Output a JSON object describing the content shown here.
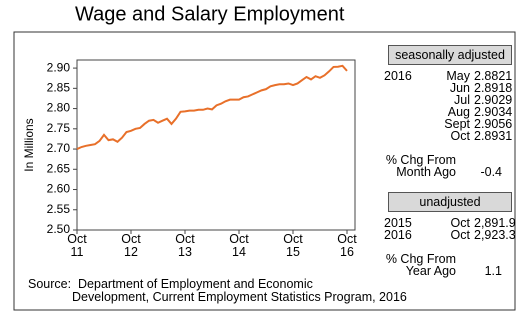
{
  "chart_data": {
    "type": "line",
    "title": "Wage and Salary Employment",
    "y_label": "In Millions",
    "color": "#e8702a",
    "categories": [
      "Oct\n11",
      null,
      null,
      null,
      null,
      null,
      null,
      null,
      null,
      null,
      null,
      null,
      "Oct\n12",
      null,
      null,
      null,
      null,
      null,
      null,
      null,
      null,
      null,
      null,
      null,
      "Oct\n13",
      null,
      null,
      null,
      null,
      null,
      null,
      null,
      null,
      null,
      null,
      null,
      "Oct\n14",
      null,
      null,
      null,
      null,
      null,
      null,
      null,
      null,
      null,
      null,
      null,
      "Oct\n15",
      null,
      null,
      null,
      null,
      null,
      null,
      null,
      null,
      null,
      null,
      null,
      "Oct\n16"
    ],
    "values": [
      2.7,
      2.705,
      2.708,
      2.71,
      2.712,
      2.72,
      2.735,
      2.722,
      2.724,
      2.718,
      2.728,
      2.742,
      2.745,
      2.75,
      2.752,
      2.762,
      2.77,
      2.772,
      2.765,
      2.77,
      2.775,
      2.762,
      2.775,
      2.792,
      2.793,
      2.795,
      2.795,
      2.797,
      2.797,
      2.8,
      2.798,
      2.808,
      2.812,
      2.818,
      2.822,
      2.822,
      2.822,
      2.828,
      2.83,
      2.835,
      2.84,
      2.845,
      2.848,
      2.855,
      2.858,
      2.86,
      2.86,
      2.862,
      2.858,
      2.862,
      2.87,
      2.878,
      2.872,
      2.88,
      2.876,
      2.8821,
      2.8918,
      2.9029,
      2.9034,
      2.9056,
      2.8931
    ],
    "ylim": [
      2.5,
      2.92
    ],
    "yticks": [
      {
        "value": 2.5,
        "label": "2.50"
      },
      2.55,
      {
        "value": 2.6,
        "label": "2.60"
      },
      2.65,
      {
        "value": 2.7,
        "label": "2.70"
      },
      2.75,
      {
        "value": 2.8,
        "label": "2.80"
      },
      2.85,
      {
        "value": 2.9,
        "label": "2.90"
      }
    ],
    "grid": false
  },
  "side_panel": {
    "seasonally_adjusted": {
      "header": "seasonally adjusted",
      "rows": [
        [
          "2016",
          "May",
          "2.8821"
        ],
        [
          "",
          "Jun",
          "2.8918"
        ],
        [
          "",
          "Jul",
          "2.9029"
        ],
        [
          "",
          "Aug",
          "2.9034"
        ],
        [
          "",
          "Sept",
          "2.9056"
        ],
        [
          "",
          "Oct",
          "2.8931"
        ]
      ],
      "change_label": [
        "% Chg From",
        "Month Ago"
      ],
      "change_value": "-0.4"
    },
    "unadjusted": {
      "header": "unadjusted",
      "rows": [
        [
          "2015",
          "Oct",
          "2,891.9"
        ],
        [
          "2016",
          "Oct",
          "2,923.3"
        ]
      ],
      "change_label": [
        "% Chg From",
        "Year Ago"
      ],
      "change_value": "1.1"
    }
  },
  "source": [
    "Source:  Department of Employment and Economic",
    "Development, Current Employment Statistics Program, 2016"
  ]
}
